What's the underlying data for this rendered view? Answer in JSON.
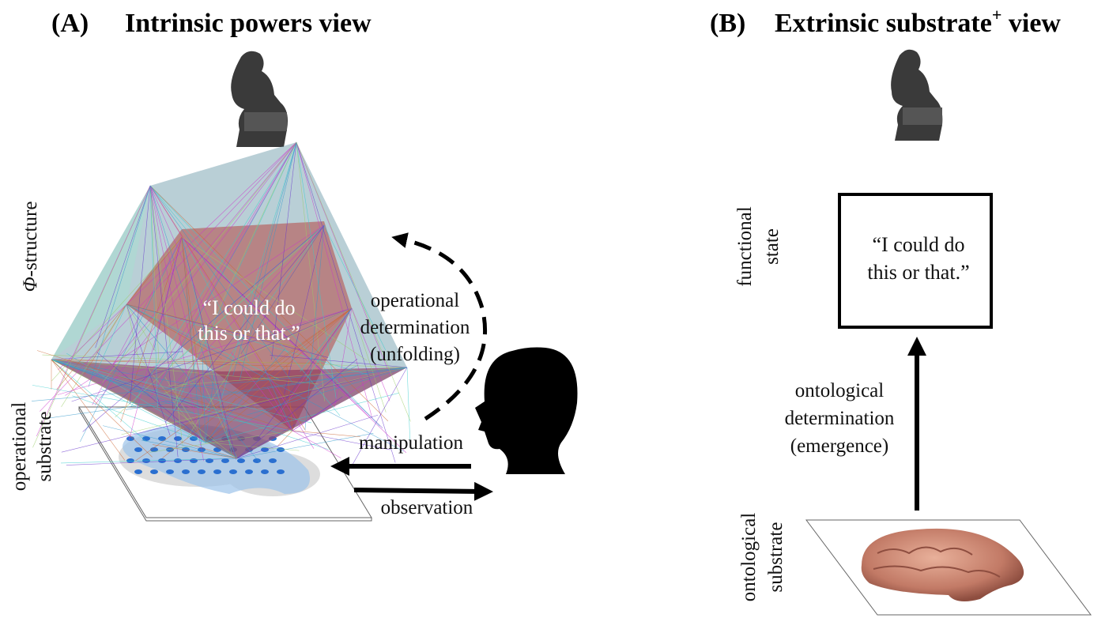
{
  "panel_a": {
    "label": "(A)",
    "title": "Intrinsic powers view",
    "phi_label": {
      "symbol": "Φ",
      "text": "-structure"
    },
    "substrate_label": [
      "operational",
      "substrate"
    ],
    "quote": [
      "“I could do",
      "this or that.”"
    ],
    "determination": [
      "operational",
      "determination",
      "(unfolding)"
    ],
    "manipulation": "manipulation",
    "observation": "observation"
  },
  "panel_b": {
    "label": "(B)",
    "title": "Extrinsic substrate",
    "title_superscript": "+",
    "title_suffix": " view",
    "state_label": [
      "functional",
      "state"
    ],
    "quote": [
      "“I could do",
      "this or that.”"
    ],
    "determination": [
      "ontological",
      "determination",
      "(emergence)"
    ],
    "substrate_label": [
      "ontological",
      "substrate"
    ]
  }
}
